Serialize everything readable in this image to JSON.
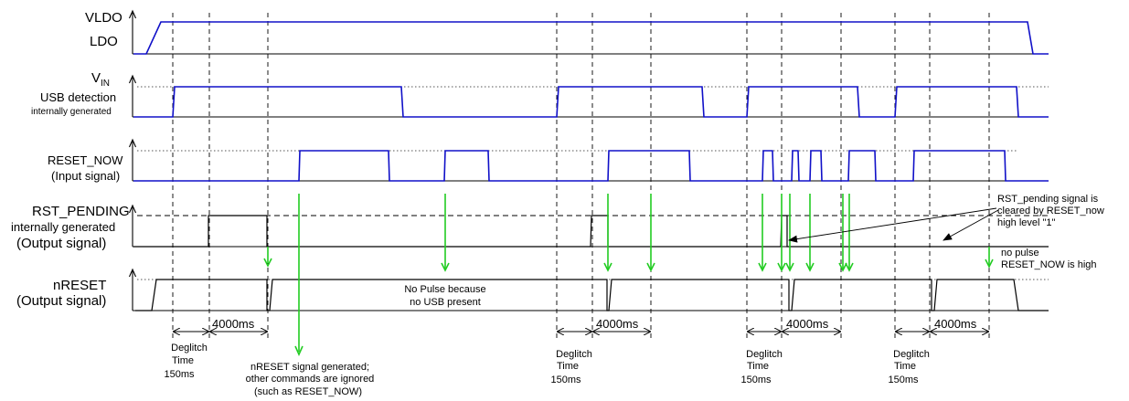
{
  "signals": {
    "vldo": "VLDO",
    "ldo": "LDO",
    "vin_main": "V",
    "vin_sub": "IN",
    "usb_detection": "USB detection",
    "usb_internal": "internally generated",
    "reset_now": "RESET_NOW",
    "reset_now_sub": "(Input signal)",
    "rst_pending": "RST_PENDING",
    "rst_pending_sub1": "internally generated",
    "rst_pending_sub2": "(Output signal)",
    "nreset": "nRESET",
    "nreset_sub": "(Output signal)"
  },
  "annotations": {
    "no_pulse_1": "No Pulse because",
    "no_pulse_2": "no USB present",
    "rst_cleared_1": "RST_pending signal is",
    "rst_cleared_2": "cleared by RESET_now",
    "rst_cleared_3": "high level \"1\"",
    "no_pulse_high_1": "no pulse",
    "no_pulse_high_2": "RESET_NOW is high",
    "nreset_gen_1": "nRESET signal generated;",
    "nreset_gen_2": "other commands are ignored",
    "nreset_gen_3": "(such as RESET_NOW)"
  },
  "timing": {
    "deglitch_1": "Deglitch",
    "deglitch_2": "Time",
    "deglitch_3": "150ms",
    "period": "4000ms"
  }
}
